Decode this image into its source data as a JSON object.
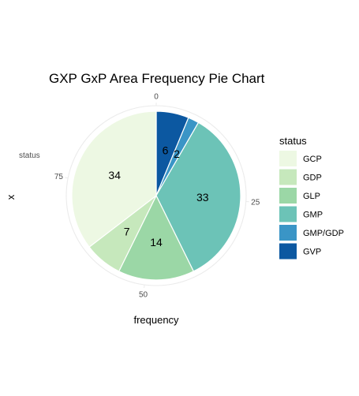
{
  "chart_data": {
    "type": "pie",
    "title": "GXP GxP Area Frequency Pie Chart",
    "xlabel": "frequency",
    "ylabel": "x",
    "category_tick": "status",
    "legend_title": "status",
    "legend_position": "right",
    "radial_ticks": [
      "0",
      "25",
      "50",
      "75"
    ],
    "radial_tick_values": [
      0,
      25,
      50,
      75
    ],
    "total": 96,
    "categories": [
      "GCP",
      "GDP",
      "GLP",
      "GMP",
      "GMP/GDP",
      "GVP"
    ],
    "values": [
      34,
      7,
      14,
      33,
      2,
      6
    ],
    "colors": [
      "#EDF8E3",
      "#C6E8BC",
      "#9BD7A6",
      "#6CC3B7",
      "#3A95C6",
      "#0C58A1"
    ],
    "slice_order": [
      "GVP",
      "GMP/GDP",
      "GMP",
      "GLP",
      "GDP",
      "GCP"
    ],
    "grid": true
  }
}
